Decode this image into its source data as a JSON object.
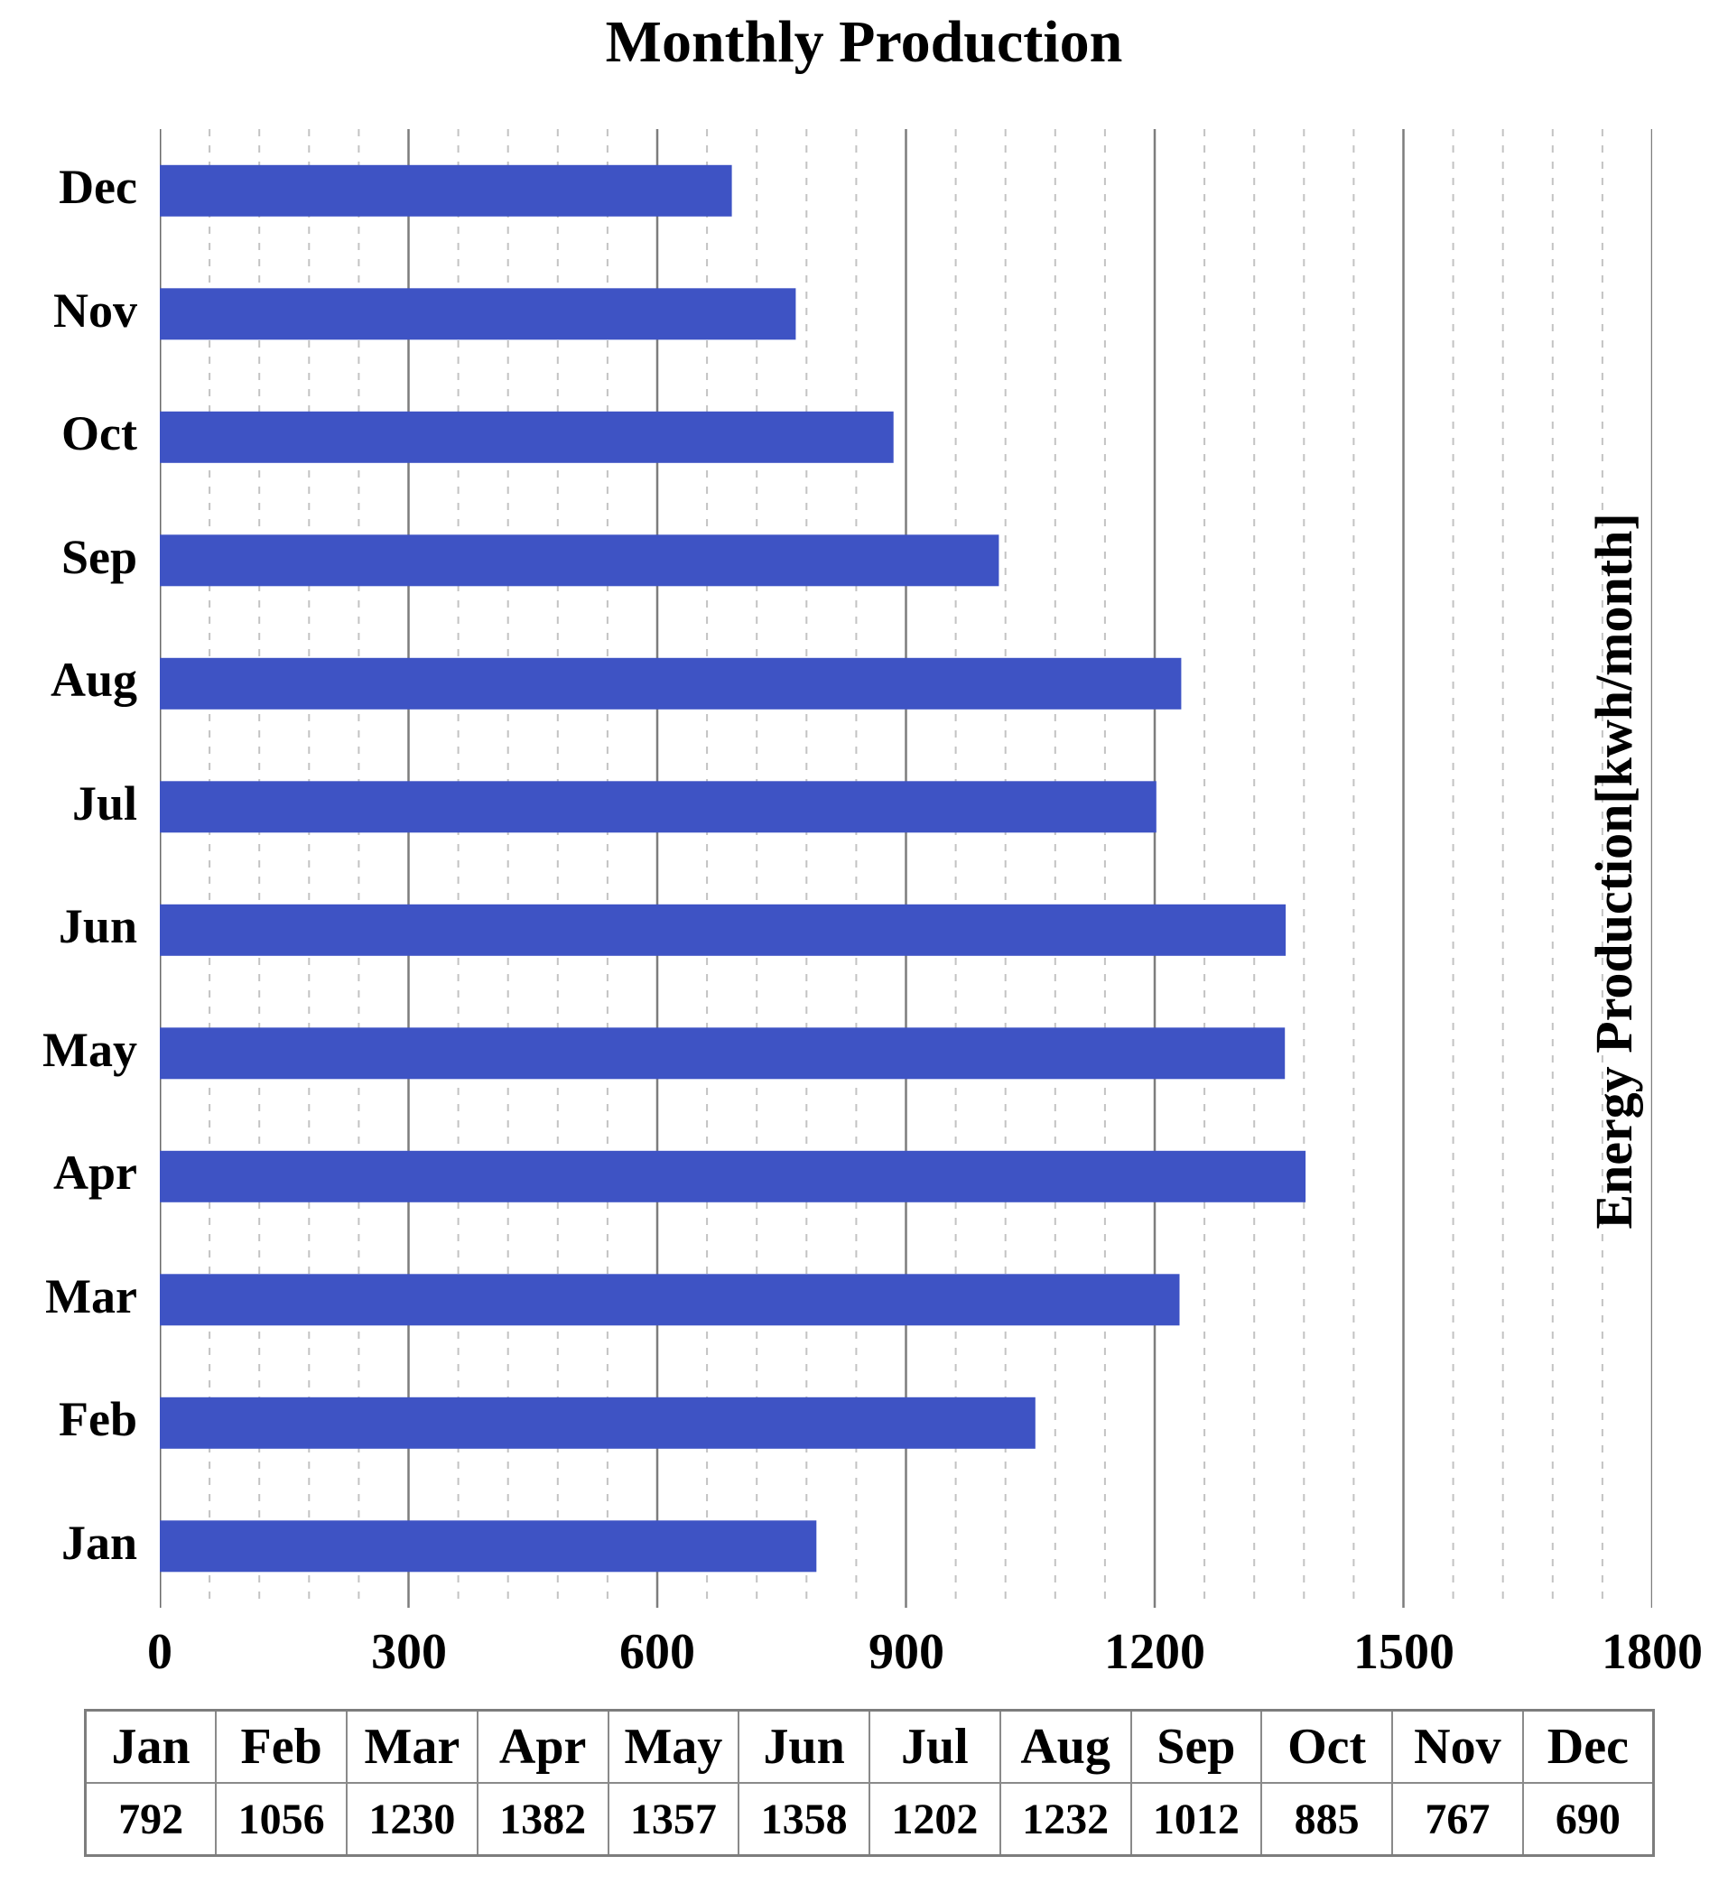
{
  "chart_data": {
    "type": "bar",
    "orientation": "horizontal",
    "title": "Monthly Production",
    "value_axis_label": "Energy Production[kwh/month]",
    "categories": [
      "Jan",
      "Feb",
      "Mar",
      "Apr",
      "May",
      "Jun",
      "Jul",
      "Aug",
      "Sep",
      "Oct",
      "Nov",
      "Dec"
    ],
    "values": [
      792,
      1056,
      1230,
      1382,
      1357,
      1358,
      1202,
      1232,
      1012,
      885,
      767,
      690
    ],
    "category_order_top_to_bottom": [
      "Dec",
      "Nov",
      "Oct",
      "Sep",
      "Aug",
      "Jul",
      "Jun",
      "May",
      "Apr",
      "Mar",
      "Feb",
      "Jan"
    ],
    "xlim": [
      0,
      1800
    ],
    "x_ticks": [
      0,
      300,
      600,
      900,
      1200,
      1500,
      1800
    ],
    "minor_tick_step": 60,
    "grid": true,
    "legend": false,
    "bar_color": "#3E53C4",
    "axis_line_color": "#696969",
    "major_grid_color": "#7d7d7d",
    "minor_grid_color": "#c3c3c3"
  },
  "table": {
    "headers": [
      "Jan",
      "Feb",
      "Mar",
      "Apr",
      "May",
      "Jun",
      "Jul",
      "Aug",
      "Sep",
      "Oct",
      "Nov",
      "Dec"
    ],
    "values": [
      "792",
      "1056",
      "1230",
      "1382",
      "1357",
      "1358",
      "1202",
      "1232",
      "1012",
      "885",
      "767",
      "690"
    ]
  }
}
